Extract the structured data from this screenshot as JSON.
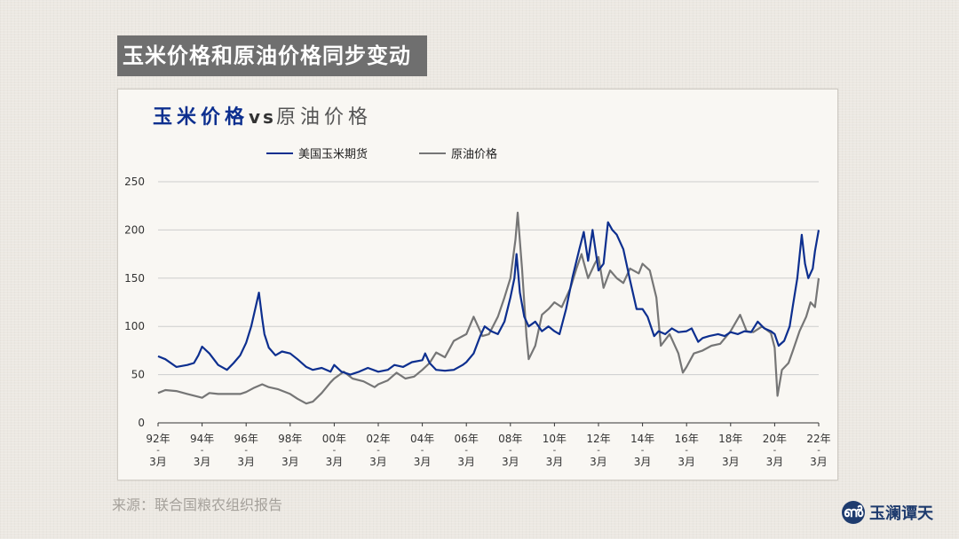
{
  "page": {
    "banner_title": "玉米价格和原油价格同步变动",
    "source": "来源：联合国粮农组织报告",
    "logo_text": "玉澜谭天",
    "logo_glyph": "ൺ"
  },
  "colors": {
    "corn": "#0d2f8f",
    "oil": "#767676",
    "grid": "#cdcdcd",
    "axis": "#333333"
  },
  "chart_data": {
    "type": "line",
    "title_parts": {
      "corn": "玉米价格",
      "vs": "vs",
      "oil": "原油价格"
    },
    "ylim": [
      0,
      250
    ],
    "yticks": [
      0,
      50,
      100,
      150,
      200,
      250
    ],
    "xlim": [
      1992.17,
      2022.17
    ],
    "xticks": [
      {
        "year": 1992.17,
        "top": "92年",
        "bottom": "3月"
      },
      {
        "year": 1994.17,
        "top": "94年",
        "bottom": "3月"
      },
      {
        "year": 1996.17,
        "top": "96年",
        "bottom": "3月"
      },
      {
        "year": 1998.17,
        "top": "98年",
        "bottom": "3月"
      },
      {
        "year": 2000.17,
        "top": "00年",
        "bottom": "3月"
      },
      {
        "year": 2002.17,
        "top": "02年",
        "bottom": "3月"
      },
      {
        "year": 2004.17,
        "top": "04年",
        "bottom": "3月"
      },
      {
        "year": 2006.17,
        "top": "06年",
        "bottom": "3月"
      },
      {
        "year": 2008.17,
        "top": "08年",
        "bottom": "3月"
      },
      {
        "year": 2010.17,
        "top": "10年",
        "bottom": "3月"
      },
      {
        "year": 2012.17,
        "top": "12年",
        "bottom": "3月"
      },
      {
        "year": 2014.17,
        "top": "14年",
        "bottom": "3月"
      },
      {
        "year": 2016.17,
        "top": "16年",
        "bottom": "3月"
      },
      {
        "year": 2018.17,
        "top": "18年",
        "bottom": "3月"
      },
      {
        "year": 2020.17,
        "top": "20年",
        "bottom": "3月"
      },
      {
        "year": 2022.17,
        "top": "22年",
        "bottom": "3月"
      }
    ],
    "legend_placement": "top-left",
    "grid": true,
    "series": [
      {
        "name": "美国玉米期货",
        "key": "corn",
        "points": [
          [
            1992.17,
            69
          ],
          [
            1992.5,
            66
          ],
          [
            1993.0,
            58
          ],
          [
            1993.5,
            60
          ],
          [
            1993.8,
            62
          ],
          [
            1994.0,
            70
          ],
          [
            1994.17,
            79
          ],
          [
            1994.5,
            72
          ],
          [
            1994.9,
            60
          ],
          [
            1995.3,
            55
          ],
          [
            1995.6,
            62
          ],
          [
            1995.9,
            70
          ],
          [
            1996.17,
            83
          ],
          [
            1996.4,
            100
          ],
          [
            1996.6,
            120
          ],
          [
            1996.75,
            135
          ],
          [
            1996.9,
            108
          ],
          [
            1997.0,
            92
          ],
          [
            1997.2,
            78
          ],
          [
            1997.5,
            70
          ],
          [
            1997.8,
            74
          ],
          [
            1998.17,
            72
          ],
          [
            1998.5,
            66
          ],
          [
            1998.9,
            58
          ],
          [
            1999.2,
            55
          ],
          [
            1999.6,
            57
          ],
          [
            2000.0,
            53
          ],
          [
            2000.17,
            60
          ],
          [
            2000.5,
            53
          ],
          [
            2000.9,
            50
          ],
          [
            2001.3,
            53
          ],
          [
            2001.7,
            57
          ],
          [
            2002.17,
            53
          ],
          [
            2002.6,
            55
          ],
          [
            2002.9,
            60
          ],
          [
            2003.3,
            58
          ],
          [
            2003.7,
            63
          ],
          [
            2004.17,
            65
          ],
          [
            2004.3,
            72
          ],
          [
            2004.5,
            62
          ],
          [
            2004.8,
            55
          ],
          [
            2005.2,
            54
          ],
          [
            2005.6,
            55
          ],
          [
            2006.0,
            60
          ],
          [
            2006.17,
            63
          ],
          [
            2006.5,
            72
          ],
          [
            2006.8,
            90
          ],
          [
            2007.0,
            100
          ],
          [
            2007.3,
            95
          ],
          [
            2007.6,
            92
          ],
          [
            2007.9,
            105
          ],
          [
            2008.17,
            130
          ],
          [
            2008.35,
            150
          ],
          [
            2008.45,
            175
          ],
          [
            2008.6,
            135
          ],
          [
            2008.8,
            110
          ],
          [
            2009.0,
            100
          ],
          [
            2009.3,
            105
          ],
          [
            2009.6,
            95
          ],
          [
            2009.9,
            100
          ],
          [
            2010.17,
            95
          ],
          [
            2010.4,
            92
          ],
          [
            2010.7,
            118
          ],
          [
            2011.0,
            152
          ],
          [
            2011.3,
            180
          ],
          [
            2011.5,
            198
          ],
          [
            2011.7,
            168
          ],
          [
            2011.9,
            200
          ],
          [
            2012.17,
            158
          ],
          [
            2012.4,
            165
          ],
          [
            2012.6,
            208
          ],
          [
            2012.8,
            200
          ],
          [
            2013.0,
            195
          ],
          [
            2013.3,
            180
          ],
          [
            2013.6,
            148
          ],
          [
            2013.9,
            118
          ],
          [
            2014.17,
            118
          ],
          [
            2014.4,
            110
          ],
          [
            2014.7,
            90
          ],
          [
            2014.9,
            95
          ],
          [
            2015.2,
            92
          ],
          [
            2015.5,
            98
          ],
          [
            2015.8,
            94
          ],
          [
            2016.17,
            95
          ],
          [
            2016.4,
            98
          ],
          [
            2016.7,
            84
          ],
          [
            2016.9,
            88
          ],
          [
            2017.2,
            90
          ],
          [
            2017.6,
            92
          ],
          [
            2017.9,
            90
          ],
          [
            2018.17,
            94
          ],
          [
            2018.5,
            92
          ],
          [
            2018.8,
            95
          ],
          [
            2019.1,
            94
          ],
          [
            2019.4,
            105
          ],
          [
            2019.7,
            98
          ],
          [
            2020.0,
            95
          ],
          [
            2020.17,
            92
          ],
          [
            2020.35,
            80
          ],
          [
            2020.6,
            85
          ],
          [
            2020.85,
            100
          ],
          [
            2021.0,
            122
          ],
          [
            2021.2,
            150
          ],
          [
            2021.4,
            195
          ],
          [
            2021.55,
            165
          ],
          [
            2021.7,
            150
          ],
          [
            2021.9,
            160
          ],
          [
            2022.0,
            178
          ],
          [
            2022.17,
            200
          ]
        ]
      },
      {
        "name": "原油价格",
        "key": "oil",
        "points": [
          [
            1992.17,
            31
          ],
          [
            1992.5,
            34
          ],
          [
            1993.0,
            33
          ],
          [
            1993.5,
            30
          ],
          [
            1994.0,
            27
          ],
          [
            1994.17,
            26
          ],
          [
            1994.5,
            31
          ],
          [
            1994.9,
            30
          ],
          [
            1995.4,
            30
          ],
          [
            1995.9,
            30
          ],
          [
            1996.17,
            32
          ],
          [
            1996.5,
            36
          ],
          [
            1996.9,
            40
          ],
          [
            1997.2,
            37
          ],
          [
            1997.6,
            35
          ],
          [
            1998.17,
            30
          ],
          [
            1998.5,
            25
          ],
          [
            1998.9,
            20
          ],
          [
            1999.2,
            22
          ],
          [
            1999.6,
            31
          ],
          [
            2000.0,
            42
          ],
          [
            2000.17,
            46
          ],
          [
            2000.6,
            53
          ],
          [
            2001.0,
            46
          ],
          [
            2001.5,
            43
          ],
          [
            2002.0,
            37
          ],
          [
            2002.17,
            40
          ],
          [
            2002.6,
            44
          ],
          [
            2003.0,
            52
          ],
          [
            2003.4,
            46
          ],
          [
            2003.8,
            48
          ],
          [
            2004.17,
            55
          ],
          [
            2004.5,
            62
          ],
          [
            2004.8,
            73
          ],
          [
            2005.2,
            68
          ],
          [
            2005.6,
            85
          ],
          [
            2006.0,
            90
          ],
          [
            2006.17,
            92
          ],
          [
            2006.5,
            110
          ],
          [
            2006.9,
            90
          ],
          [
            2007.2,
            92
          ],
          [
            2007.6,
            110
          ],
          [
            2007.9,
            130
          ],
          [
            2008.17,
            150
          ],
          [
            2008.4,
            190
          ],
          [
            2008.5,
            218
          ],
          [
            2008.7,
            160
          ],
          [
            2008.9,
            90
          ],
          [
            2009.0,
            66
          ],
          [
            2009.3,
            80
          ],
          [
            2009.6,
            112
          ],
          [
            2009.9,
            118
          ],
          [
            2010.17,
            125
          ],
          [
            2010.5,
            120
          ],
          [
            2010.9,
            140
          ],
          [
            2011.17,
            160
          ],
          [
            2011.4,
            175
          ],
          [
            2011.7,
            150
          ],
          [
            2012.0,
            165
          ],
          [
            2012.17,
            172
          ],
          [
            2012.4,
            140
          ],
          [
            2012.7,
            158
          ],
          [
            2013.0,
            150
          ],
          [
            2013.3,
            145
          ],
          [
            2013.6,
            160
          ],
          [
            2014.0,
            155
          ],
          [
            2014.17,
            165
          ],
          [
            2014.5,
            158
          ],
          [
            2014.8,
            130
          ],
          [
            2015.0,
            80
          ],
          [
            2015.4,
            92
          ],
          [
            2015.8,
            72
          ],
          [
            2016.0,
            52
          ],
          [
            2016.17,
            58
          ],
          [
            2016.5,
            72
          ],
          [
            2016.9,
            75
          ],
          [
            2017.3,
            80
          ],
          [
            2017.7,
            82
          ],
          [
            2018.17,
            95
          ],
          [
            2018.6,
            112
          ],
          [
            2018.9,
            95
          ],
          [
            2019.2,
            94
          ],
          [
            2019.6,
            100
          ],
          [
            2020.0,
            93
          ],
          [
            2020.17,
            78
          ],
          [
            2020.3,
            28
          ],
          [
            2020.5,
            55
          ],
          [
            2020.8,
            62
          ],
          [
            2021.0,
            75
          ],
          [
            2021.3,
            95
          ],
          [
            2021.6,
            110
          ],
          [
            2021.8,
            125
          ],
          [
            2022.0,
            120
          ],
          [
            2022.17,
            150
          ]
        ]
      }
    ]
  }
}
